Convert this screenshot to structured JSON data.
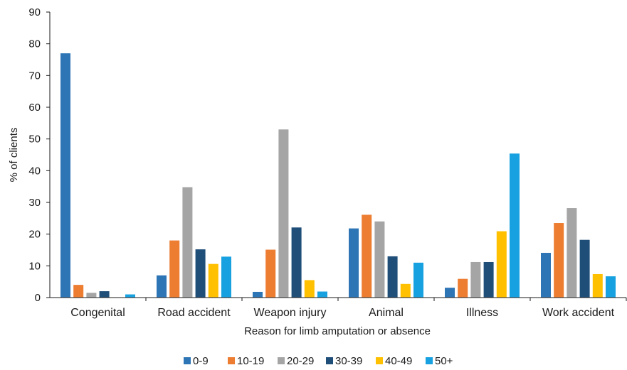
{
  "chart_data": {
    "type": "bar",
    "title": "",
    "xlabel": "Reason for limb amputation or absence",
    "ylabel": "% of clients",
    "ylim": [
      0,
      90
    ],
    "yticks": [
      "0",
      "10",
      "20",
      "30",
      "40",
      "50",
      "60",
      "70",
      "80",
      "90"
    ],
    "grid": false,
    "legend_position": "bottom",
    "categories": [
      "Congenital",
      "Road accident",
      "Weapon injury",
      "Animal",
      "Illness",
      "Work accident"
    ],
    "series": [
      {
        "name": "0-9",
        "color": "#2e75b6",
        "values": [
          77,
          7,
          1.8,
          21.8,
          3.1,
          14.1
        ]
      },
      {
        "name": "10-19",
        "color": "#ed7d31",
        "values": [
          4,
          18,
          15.1,
          26.1,
          5.9,
          23.5
        ]
      },
      {
        "name": "20-29",
        "color": "#a5a5a5",
        "values": [
          1.5,
          34.8,
          53,
          24,
          11.2,
          28.2
        ]
      },
      {
        "name": "30-39",
        "color": "#1f4e79",
        "values": [
          2,
          15.2,
          22.1,
          13,
          11.2,
          18.2
        ]
      },
      {
        "name": "40-49",
        "color": "#ffc000",
        "values": [
          0,
          10.6,
          5.5,
          4.3,
          20.9,
          7.4
        ]
      },
      {
        "name": "50+",
        "color": "#17a1e0",
        "values": [
          1,
          12.9,
          1.9,
          11,
          45.4,
          6.7
        ]
      }
    ]
  }
}
